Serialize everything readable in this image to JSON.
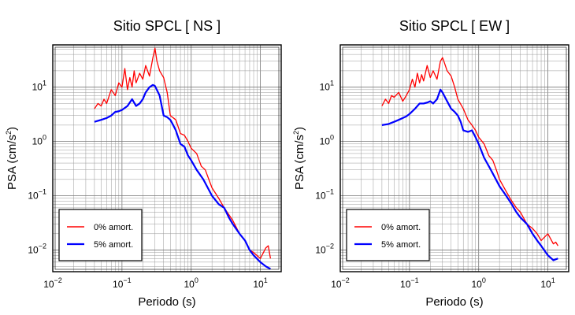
{
  "chart_data": [
    {
      "type": "line",
      "title": "Sitio SPCL [ NS ]",
      "xlabel": "Periodo (s)",
      "ylabel_main": "PSA (cm/s",
      "ylabel_sup": "2",
      "ylabel_tail": ")",
      "x_scale": "log",
      "y_scale": "log",
      "xlim": [
        0.01,
        20
      ],
      "ylim": [
        0.004,
        60
      ],
      "grid": true,
      "legend_position": "bottom-left",
      "x_ticks": [
        {
          "base": "10",
          "exp": "−2"
        },
        {
          "base": "10",
          "exp": "−1"
        },
        {
          "base": "10",
          "exp": "0"
        },
        {
          "base": "10",
          "exp": "1"
        }
      ],
      "y_ticks": [
        {
          "base": "10",
          "exp": "−2"
        },
        {
          "base": "10",
          "exp": "−1"
        },
        {
          "base": "10",
          "exp": "0"
        },
        {
          "base": "10",
          "exp": "1"
        }
      ],
      "series": [
        {
          "name": "0% amort.",
          "color": "#ff0000",
          "x": [
            0.04,
            0.045,
            0.05,
            0.055,
            0.06,
            0.07,
            0.08,
            0.09,
            0.1,
            0.11,
            0.12,
            0.13,
            0.14,
            0.15,
            0.16,
            0.18,
            0.2,
            0.22,
            0.25,
            0.28,
            0.3,
            0.32,
            0.35,
            0.4,
            0.45,
            0.5,
            0.6,
            0.7,
            0.8,
            0.9,
            1.0,
            1.2,
            1.4,
            1.6,
            1.8,
            2.0,
            2.5,
            3.0,
            3.5,
            4.0,
            5.0,
            6.0,
            7.0,
            8.0,
            10.0,
            12.0,
            13.0,
            14.0
          ],
          "y": [
            4.0,
            5.0,
            4.5,
            6.0,
            5.0,
            9.0,
            7.0,
            12.0,
            10.0,
            22.0,
            9.0,
            15.0,
            10.0,
            20.0,
            12.0,
            18.0,
            14.0,
            25.0,
            16.0,
            35.0,
            52.0,
            30.0,
            20.0,
            15.0,
            8.0,
            3.0,
            2.5,
            1.4,
            1.3,
            1.0,
            0.75,
            0.6,
            0.35,
            0.3,
            0.2,
            0.14,
            0.09,
            0.06,
            0.045,
            0.035,
            0.02,
            0.015,
            0.01,
            0.009,
            0.007,
            0.011,
            0.012,
            0.007
          ]
        },
        {
          "name": "5% amort.",
          "color": "#0000ff",
          "x": [
            0.04,
            0.05,
            0.06,
            0.07,
            0.08,
            0.09,
            0.1,
            0.12,
            0.14,
            0.16,
            0.18,
            0.2,
            0.22,
            0.25,
            0.28,
            0.3,
            0.35,
            0.4,
            0.45,
            0.5,
            0.55,
            0.6,
            0.7,
            0.8,
            0.9,
            1.0,
            1.2,
            1.5,
            2.0,
            2.5,
            3.0,
            3.5,
            4.0,
            5.0,
            6.0,
            7.0,
            8.0,
            10.0,
            12.0,
            14.0
          ],
          "y": [
            2.3,
            2.5,
            2.7,
            3.0,
            3.5,
            3.6,
            3.8,
            4.5,
            6.0,
            4.5,
            5.0,
            6.0,
            8.0,
            10.0,
            11.0,
            10.5,
            7.0,
            3.0,
            2.8,
            2.5,
            2.0,
            1.6,
            0.9,
            0.8,
            0.55,
            0.45,
            0.3,
            0.2,
            0.1,
            0.07,
            0.06,
            0.04,
            0.03,
            0.02,
            0.015,
            0.01,
            0.008,
            0.006,
            0.005,
            0.0045
          ]
        }
      ]
    },
    {
      "type": "line",
      "title": "Sitio SPCL [ EW ]",
      "xlabel": "Periodo (s)",
      "ylabel_main": "PSA (cm/s",
      "ylabel_sup": "2",
      "ylabel_tail": ")",
      "x_scale": "log",
      "y_scale": "log",
      "xlim": [
        0.01,
        20
      ],
      "ylim": [
        0.004,
        60
      ],
      "grid": true,
      "legend_position": "bottom-left",
      "x_ticks": [
        {
          "base": "10",
          "exp": "−2"
        },
        {
          "base": "10",
          "exp": "−1"
        },
        {
          "base": "10",
          "exp": "0"
        },
        {
          "base": "10",
          "exp": "1"
        }
      ],
      "y_ticks": [
        {
          "base": "10",
          "exp": "−2"
        },
        {
          "base": "10",
          "exp": "−1"
        },
        {
          "base": "10",
          "exp": "0"
        },
        {
          "base": "10",
          "exp": "1"
        }
      ],
      "series": [
        {
          "name": "0% amort.",
          "color": "#ff0000",
          "x": [
            0.04,
            0.045,
            0.05,
            0.055,
            0.06,
            0.07,
            0.08,
            0.09,
            0.1,
            0.11,
            0.12,
            0.13,
            0.14,
            0.15,
            0.16,
            0.18,
            0.2,
            0.22,
            0.25,
            0.28,
            0.3,
            0.32,
            0.35,
            0.4,
            0.45,
            0.5,
            0.6,
            0.7,
            0.8,
            0.9,
            1.0,
            1.2,
            1.4,
            1.6,
            1.8,
            2.0,
            2.5,
            3.0,
            3.5,
            4.0,
            5.0,
            6.0,
            7.0,
            8.0,
            10.0,
            12.0,
            13.0,
            14.0
          ],
          "y": [
            4.5,
            6.0,
            5.0,
            7.0,
            6.5,
            8.0,
            5.5,
            7.0,
            9.0,
            14.0,
            10.0,
            18.0,
            12.0,
            17.0,
            13.0,
            25.0,
            15.0,
            20.0,
            14.0,
            30.0,
            35.0,
            28.0,
            20.0,
            16.0,
            10.0,
            6.0,
            4.0,
            2.5,
            2.0,
            1.6,
            1.2,
            0.9,
            0.55,
            0.45,
            0.3,
            0.2,
            0.12,
            0.08,
            0.06,
            0.05,
            0.03,
            0.025,
            0.02,
            0.015,
            0.02,
            0.013,
            0.014,
            0.012
          ]
        },
        {
          "name": "5% amort.",
          "color": "#0000ff",
          "x": [
            0.04,
            0.05,
            0.06,
            0.07,
            0.08,
            0.09,
            0.1,
            0.12,
            0.14,
            0.16,
            0.18,
            0.2,
            0.22,
            0.25,
            0.28,
            0.3,
            0.35,
            0.4,
            0.45,
            0.5,
            0.55,
            0.6,
            0.7,
            0.8,
            0.9,
            1.0,
            1.2,
            1.5,
            2.0,
            2.5,
            3.0,
            3.5,
            4.0,
            5.0,
            6.0,
            7.0,
            8.0,
            10.0,
            12.0,
            14.0
          ],
          "y": [
            2.0,
            2.1,
            2.3,
            2.5,
            2.7,
            2.9,
            3.2,
            4.0,
            5.0,
            5.0,
            5.2,
            5.5,
            5.0,
            6.0,
            9.0,
            8.0,
            5.5,
            4.0,
            3.5,
            3.0,
            2.3,
            1.6,
            1.5,
            1.6,
            1.2,
            0.9,
            0.5,
            0.3,
            0.15,
            0.1,
            0.07,
            0.05,
            0.04,
            0.03,
            0.02,
            0.015,
            0.012,
            0.008,
            0.0065,
            0.007
          ]
        }
      ]
    }
  ]
}
